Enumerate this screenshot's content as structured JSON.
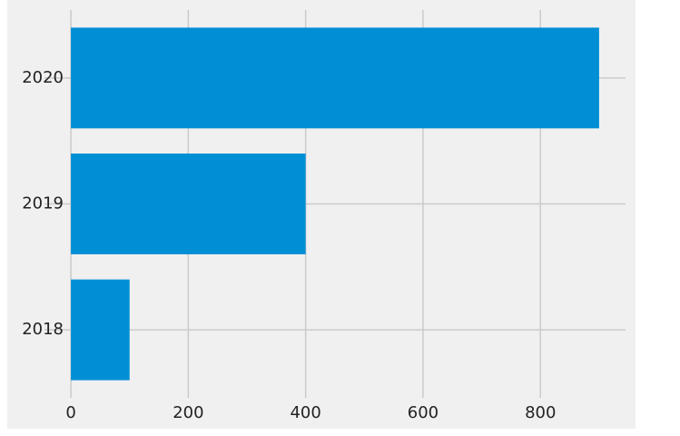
{
  "chart_data": {
    "type": "barh",
    "categories": [
      "2018",
      "2019",
      "2020"
    ],
    "values": [
      100,
      400,
      900
    ],
    "color": "#008fd5",
    "xlim": [
      -45,
      945
    ],
    "xticks": [
      0,
      200,
      400,
      600,
      800
    ],
    "grid": true
  }
}
